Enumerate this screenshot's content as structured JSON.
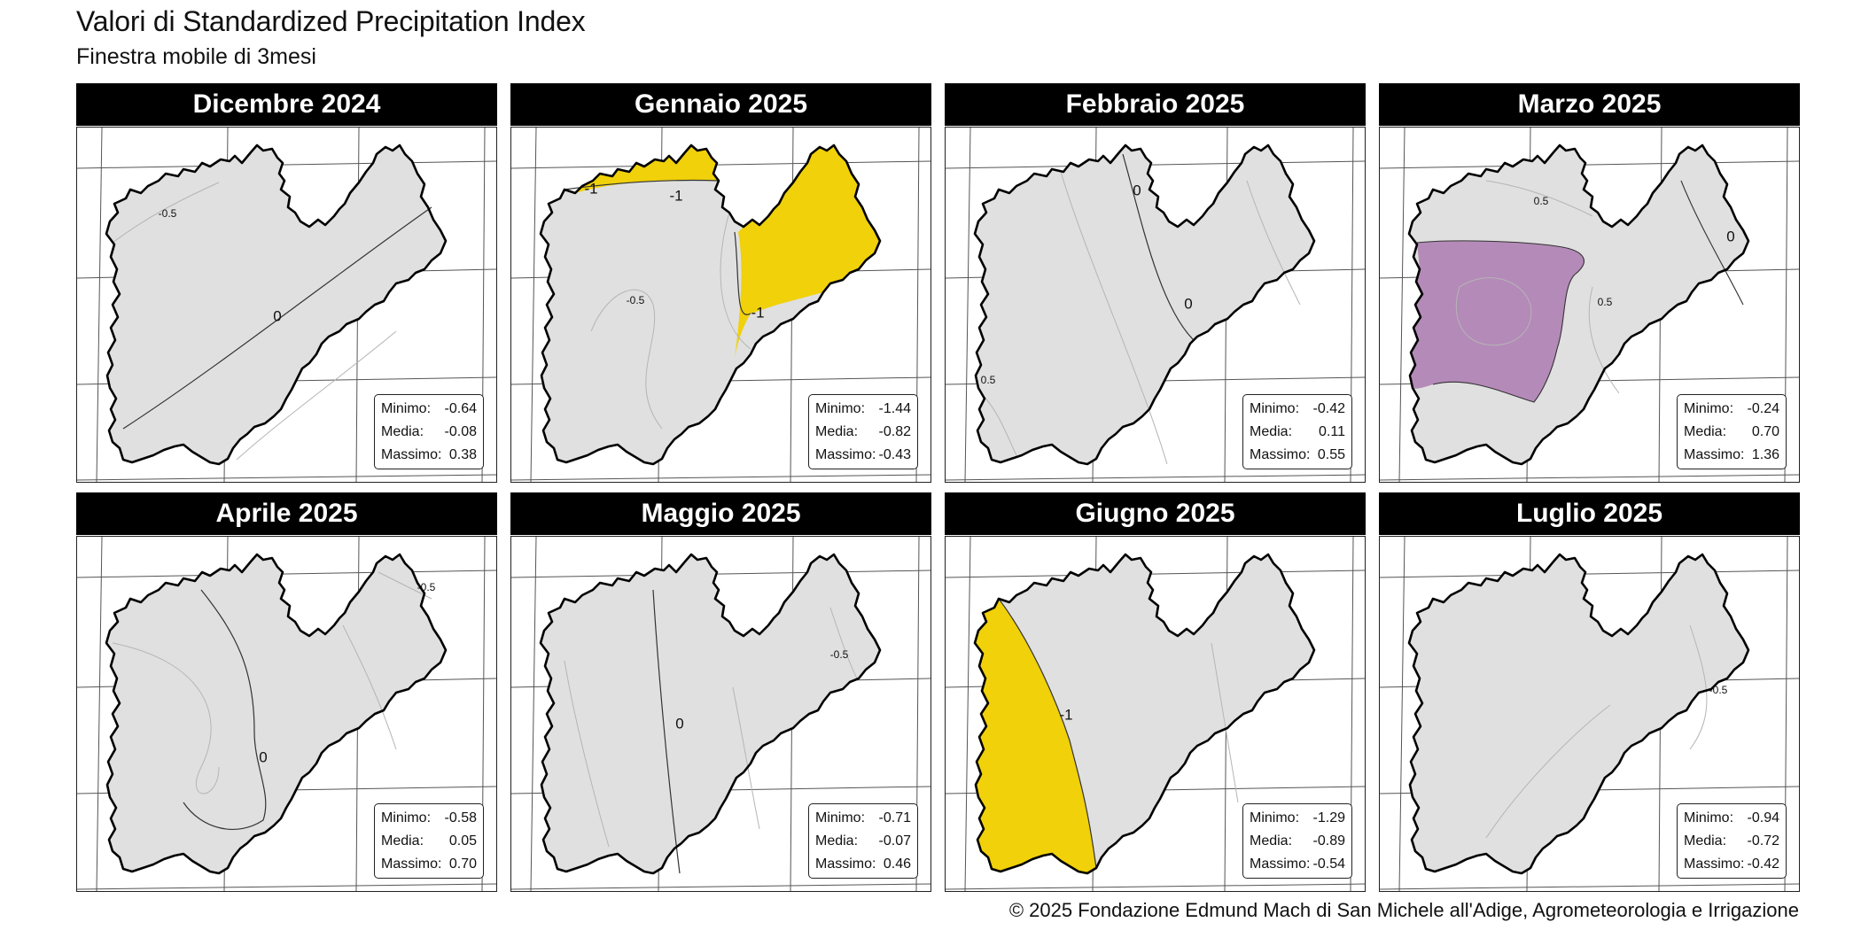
{
  "title": "Valori di Standardized Precipitation Index",
  "subtitle": "Finestra mobile di 3mesi",
  "copyright": "© 2025 Fondazione Edmund Mach di San Michele all'Adige, Agrometeorologia e Irrigazione",
  "stat_labels": {
    "min": "Minimo:",
    "mean": "Media:",
    "max": "Massimo:"
  },
  "colors": {
    "region_fill": "#e0e0e0",
    "border": "#000000",
    "graticule": "#555555",
    "contour_zero": "#333333",
    "contour_minor": "#b5b5b5",
    "dry_moderate": "#f0d10a",
    "wet_moderate": "#b48ab8",
    "header_bg": "#000000",
    "header_text": "#ffffff"
  },
  "panels": [
    {
      "month": "Dicembre 2024",
      "stats": {
        "min": "-0.64",
        "mean": "-0.08",
        "max": "0.38"
      },
      "zones": [],
      "contour_labels": [
        "-0.5",
        "0"
      ]
    },
    {
      "month": "Gennaio 2025",
      "stats": {
        "min": "-1.44",
        "mean": "-0.82",
        "max": "-0.43"
      },
      "zones": [
        "dry_moderate"
      ],
      "contour_labels": [
        "-1",
        "-1",
        "-1",
        "-0.5"
      ]
    },
    {
      "month": "Febbraio 2025",
      "stats": {
        "min": "-0.42",
        "mean": "0.11",
        "max": "0.55"
      },
      "zones": [],
      "contour_labels": [
        "0",
        "0",
        "0.5"
      ]
    },
    {
      "month": "Marzo 2025",
      "stats": {
        "min": "-0.24",
        "mean": "0.70",
        "max": "1.36"
      },
      "zones": [
        "wet_moderate"
      ],
      "contour_labels": [
        "0.5",
        "0",
        "0.5"
      ]
    },
    {
      "month": "Aprile 2025",
      "stats": {
        "min": "-0.58",
        "mean": "0.05",
        "max": "0.70"
      },
      "zones": [],
      "contour_labels": [
        "-0.5",
        "0"
      ]
    },
    {
      "month": "Maggio 2025",
      "stats": {
        "min": "-0.71",
        "mean": "-0.07",
        "max": "0.46"
      },
      "zones": [],
      "contour_labels": [
        "0",
        "-0.5"
      ]
    },
    {
      "month": "Giugno 2025",
      "stats": {
        "min": "-1.29",
        "mean": "-0.89",
        "max": "-0.54"
      },
      "zones": [
        "dry_moderate"
      ],
      "contour_labels": [
        "-1"
      ]
    },
    {
      "month": "Luglio 2025",
      "stats": {
        "min": "-0.94",
        "mean": "-0.72",
        "max": "-0.42"
      },
      "zones": [],
      "contour_labels": [
        "-0.5"
      ]
    }
  ]
}
